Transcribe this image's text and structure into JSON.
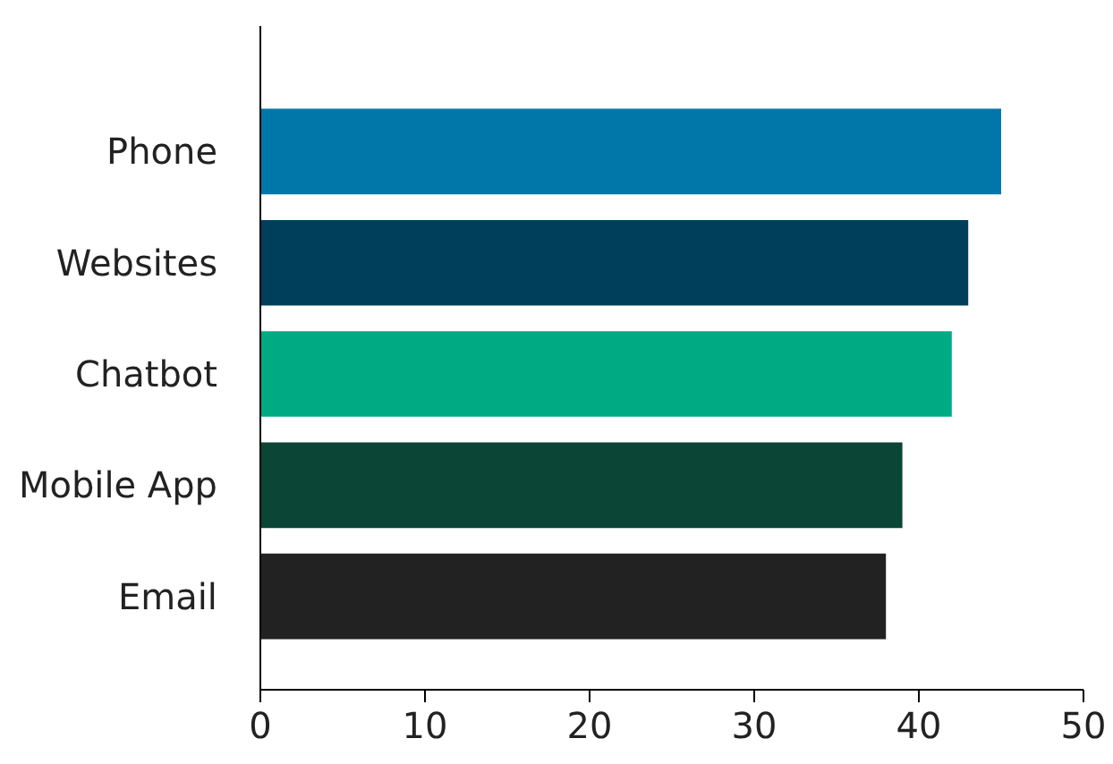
{
  "chart_data": {
    "type": "bar",
    "orientation": "horizontal",
    "categories": [
      "Phone",
      "Websites",
      "Chatbot",
      "Mobile App",
      "Email"
    ],
    "values": [
      45,
      43,
      42,
      39,
      38
    ],
    "colors": [
      "#0077a8",
      "#003f5c",
      "#00ab84",
      "#0b4535",
      "#222222"
    ],
    "xlim": [
      0,
      50
    ],
    "xticks": [
      0,
      10,
      20,
      30,
      40,
      50
    ],
    "grid": false
  }
}
